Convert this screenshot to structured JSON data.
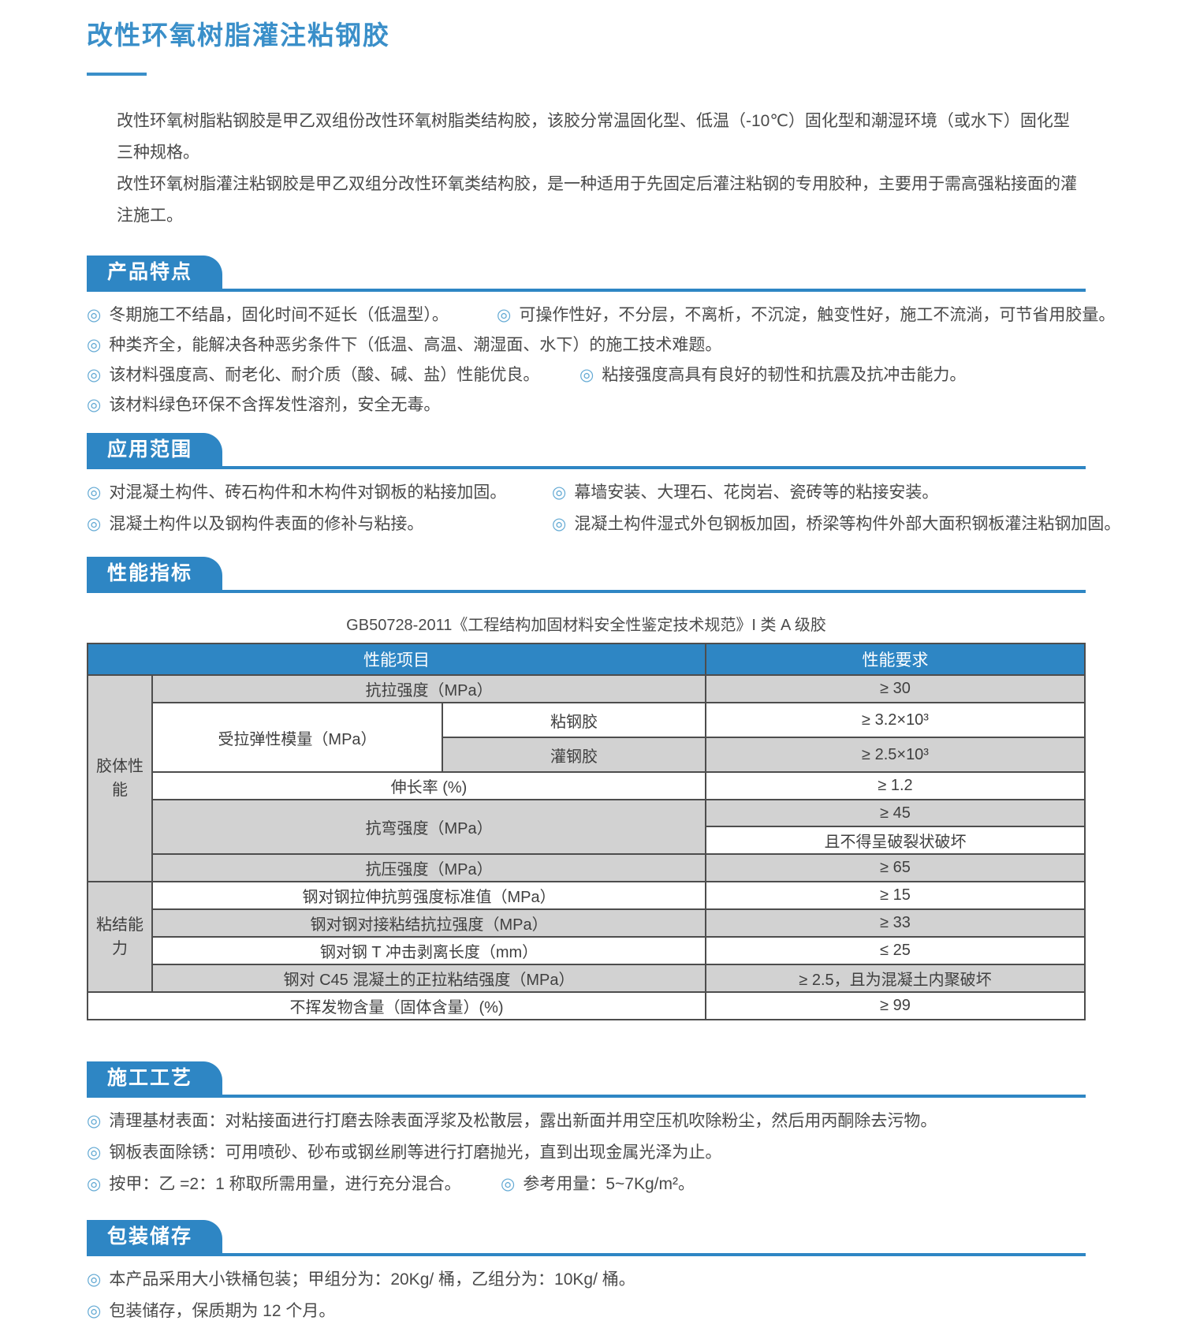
{
  "icons": {
    "bullet": "◎"
  },
  "colors": {
    "accent": "#2e86c4",
    "title_blue": "#3a8fc9",
    "table_row_grey": "#d2d2d2",
    "table_border": "#4d4d4d",
    "body_text": "#4a4a4a"
  },
  "header": {
    "title": "改性环氧树脂灌注粘钢胶",
    "intro1": "改性环氧树脂粘钢胶是甲乙双组份改性环氧树脂类结构胶，该胶分常温固化型、低温（-10℃）固化型和潮湿环境（或水下）固化型三种规格。",
    "intro2": "改性环氧树脂灌注粘钢胶是甲乙双组分改性环氧类结构胶，是一种适用于先固定后灌注粘钢的专用胶种，主要用于需高强粘接面的灌注施工。"
  },
  "features": {
    "title": "产品特点",
    "items": [
      "冬期施工不结晶，固化时间不延长（低温型）。",
      "可操作性好，不分层，不离析，不沉淀，触变性好，施工不流淌，可节省用胶量。",
      "种类齐全，能解决各种恶劣条件下（低温、高温、潮湿面、水下）的施工技术难题。",
      "该材料强度高、耐老化、耐介质（酸、碱、盐）性能优良。",
      "粘接强度高具有良好的韧性和抗震及抗冲击能力。",
      "该材料绿色环保不含挥发性溶剂，安全无毒。"
    ]
  },
  "applications": {
    "title": "应用范围",
    "items": [
      "对混凝土构件、砖石构件和木构件对钢板的粘接加固。",
      "幕墙安装、大理石、花岗岩、瓷砖等的粘接安装。",
      "混凝土构件以及钢构件表面的修补与粘接。",
      "混凝土构件湿式外包钢板加固，桥梁等构件外部大面积钢板灌注粘钢加固。"
    ]
  },
  "performance": {
    "title": "性能指标",
    "caption": "GB50728-2011《工程结构加固材料安全性鉴定技术规范》I 类 A 级胶",
    "header": {
      "item": "性能项目",
      "requirement": "性能要求"
    },
    "groups": {
      "body": "胶体性能",
      "bond": "粘结能力"
    },
    "rows": {
      "tensile": {
        "name": "抗拉强度（MPa）",
        "req": "≥ 30"
      },
      "modulus": {
        "name": "受拉弹性模量（MPa）",
        "sub1": "粘钢胶",
        "req1": "≥ 3.2×10³",
        "sub2": "灌钢胶",
        "req2": "≥ 2.5×10³"
      },
      "elongation": {
        "name": "伸长率 (%)",
        "req": "≥ 1.2"
      },
      "flexural": {
        "name": "抗弯强度（MPa）",
        "req1": "≥ 45",
        "req2": "且不得呈破裂状破坏"
      },
      "compressive": {
        "name": "抗压强度（MPa）",
        "req": "≥ 65"
      },
      "shear": {
        "name": "钢对钢拉伸抗剪强度标准值（MPa）",
        "req": "≥ 15"
      },
      "butt_tensile": {
        "name": "钢对钢对接粘结抗拉强度（MPa）",
        "req": "≥ 33"
      },
      "t_peel": {
        "name": "钢对钢 T 冲击剥离长度（mm）",
        "req": "≤ 25"
      },
      "concrete_bond": {
        "name": "钢对 C45 混凝土的正拉粘结强度（MPa）",
        "req": "≥ 2.5，且为混凝土内聚破坏"
      },
      "solids": {
        "name": "不挥发物含量（固体含量）(%)",
        "req": "≥ 99"
      }
    }
  },
  "process": {
    "title": "施工工艺",
    "items": [
      "清理基材表面：对粘接面进行打磨去除表面浮浆及松散层，露出新面并用空压机吹除粉尘，然后用丙酮除去污物。",
      "钢板表面除锈：可用喷砂、砂布或钢丝刷等进行打磨抛光，直到出现金属光泽为止。",
      "按甲：乙 =2：1 称取所需用量，进行充分混合。",
      "参考用量：5~7Kg/m²。"
    ]
  },
  "packaging": {
    "title": "包装储存",
    "items": [
      "本产品采用大小铁桶包装；甲组分为：20Kg/ 桶，乙组分为：10Kg/ 桶。",
      "包装储存，保质期为 12 个月。"
    ]
  }
}
